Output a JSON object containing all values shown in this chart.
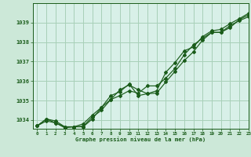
{
  "xlabel": "Graphe pression niveau de la mer (hPa)",
  "background_color": "#cce8d8",
  "plot_bg_color": "#d8f0e8",
  "grid_color": "#a8d0b8",
  "line_color": "#1a5c1a",
  "xlim": [
    -0.5,
    23
  ],
  "ylim": [
    1033.55,
    1040.0
  ],
  "yticks": [
    1034,
    1035,
    1036,
    1037,
    1038,
    1039
  ],
  "xticks": [
    0,
    1,
    2,
    3,
    4,
    5,
    6,
    7,
    8,
    9,
    10,
    11,
    12,
    13,
    14,
    15,
    16,
    17,
    18,
    19,
    20,
    21,
    22,
    23
  ],
  "series": [
    [
      1033.7,
      1033.95,
      1033.85,
      1033.6,
      1033.65,
      1033.68,
      1034.15,
      1034.5,
      1035.05,
      1035.55,
      1035.8,
      1035.55,
      1035.35,
      1035.38,
      1035.95,
      1036.5,
      1037.05,
      1037.5,
      1038.1,
      1038.5,
      1038.5,
      1038.75,
      1039.15,
      1039.4
    ],
    [
      1033.7,
      1034.05,
      1033.95,
      1033.65,
      1033.65,
      1033.65,
      1034.05,
      1034.65,
      1035.05,
      1035.25,
      1035.5,
      1035.38,
      1035.75,
      1035.75,
      1036.15,
      1036.65,
      1037.35,
      1037.85,
      1038.2,
      1038.5,
      1038.5,
      1038.85,
      1039.1,
      1039.3
    ],
    [
      1033.7,
      1034.05,
      1033.85,
      1033.65,
      1033.65,
      1033.8,
      1034.25,
      1034.65,
      1035.25,
      1035.45,
      1035.85,
      1035.25,
      1035.35,
      1035.5,
      1036.45,
      1036.95,
      1037.55,
      1037.75,
      1038.28,
      1038.58,
      1038.65,
      1038.95,
      1039.2,
      1039.48
    ]
  ]
}
